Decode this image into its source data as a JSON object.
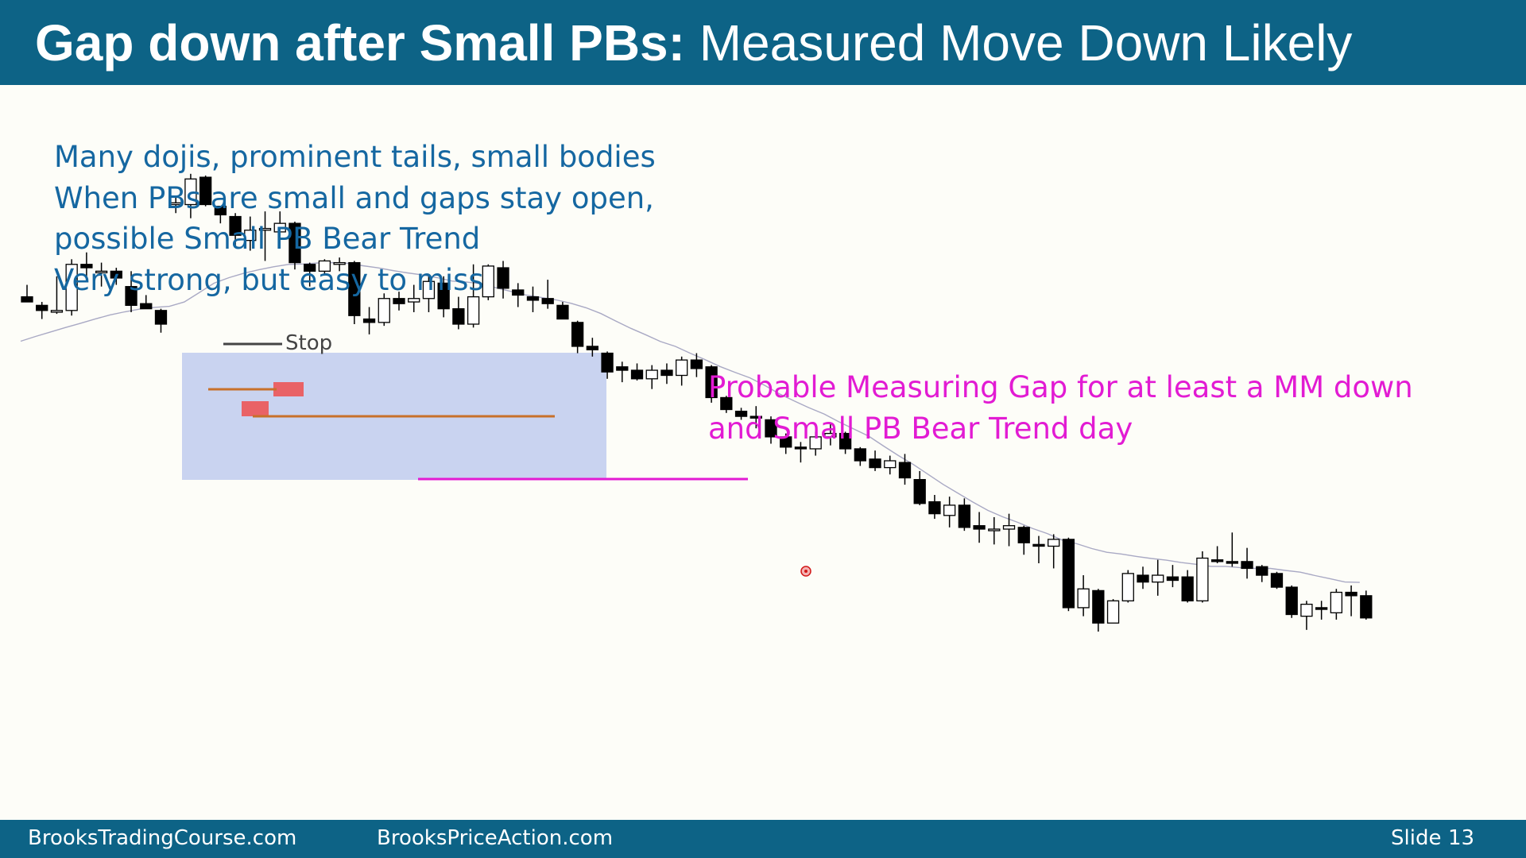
{
  "slide": {
    "title_bold": "Gap down after Small PBs:",
    "title_rest": " Measured Move Down Likely",
    "notes": [
      "Many dojis, prominent tails, small bodies",
      "When PBs are small and gaps stay open,",
      "possible Small PB Bear Trend",
      "Very strong, but easy to miss"
    ],
    "annotation": [
      "Probable Measuring Gap for at least a MM down",
      "and Small PB Bear Trend day"
    ],
    "stop_label": "Stop",
    "footer": {
      "left": "BrooksTradingCourse.com",
      "middle": "BrooksPriceAction.com",
      "slide_label": "Slide",
      "slide_number": "13"
    }
  },
  "colors": {
    "header_bg": "#0d6386",
    "notes_text": "#1567a1",
    "annotation_text": "#e21bd3",
    "highlight_box": "#c9d3f0",
    "bear_bar": "#000000",
    "bull_bar": "#ffffff",
    "moving_average": "#a9a9c4",
    "range_line": "#c8702a",
    "gap_line": "#e21bd3",
    "stop_box": "#ee4d4d"
  },
  "chart_data": {
    "type": "candlestick",
    "ylim": [
      0,
      100
    ],
    "bars": [
      {
        "o": 48.0,
        "h": 51.5,
        "l": 46.5,
        "c": 46.5
      },
      {
        "o": 45.5,
        "h": 46.5,
        "l": 41.5,
        "c": 44.0
      },
      {
        "o": 43.5,
        "h": 54.0,
        "l": 43.0,
        "c": 44.0
      },
      {
        "o": 44.0,
        "h": 59.0,
        "l": 42.5,
        "c": 57.5
      },
      {
        "o": 57.5,
        "h": 61.0,
        "l": 54.0,
        "c": 56.5
      },
      {
        "o": 55.5,
        "h": 58.0,
        "l": 51.0,
        "c": 55.5
      },
      {
        "o": 55.5,
        "h": 56.5,
        "l": 51.5,
        "c": 53.5
      },
      {
        "o": 51.0,
        "h": 55.5,
        "l": 43.5,
        "c": 45.5
      },
      {
        "o": 46.0,
        "h": 48.5,
        "l": 44.5,
        "c": 44.5
      },
      {
        "o": 44.0,
        "h": 44.5,
        "l": 37.5,
        "c": 40.0
      },
      {
        "o": 75.0,
        "h": 77.5,
        "l": 72.5,
        "c": 75.5
      },
      {
        "o": 75.0,
        "h": 84.0,
        "l": 71.0,
        "c": 82.5
      },
      {
        "o": 83.0,
        "h": 83.5,
        "l": 74.5,
        "c": 75.0
      },
      {
        "o": 74.5,
        "h": 74.5,
        "l": 69.5,
        "c": 72.0
      },
      {
        "o": 71.5,
        "h": 72.5,
        "l": 62.5,
        "c": 66.0
      },
      {
        "o": 64.5,
        "h": 71.5,
        "l": 61.5,
        "c": 67.5
      },
      {
        "o": 67.5,
        "h": 73.0,
        "l": 58.5,
        "c": 68.0
      },
      {
        "o": 67.0,
        "h": 73.0,
        "l": 64.5,
        "c": 69.5
      },
      {
        "o": 69.5,
        "h": 70.0,
        "l": 56.0,
        "c": 58.0
      },
      {
        "o": 57.5,
        "h": 58.0,
        "l": 51.0,
        "c": 55.5
      },
      {
        "o": 55.5,
        "h": 59.0,
        "l": 54.5,
        "c": 58.5
      },
      {
        "o": 57.5,
        "h": 59.5,
        "l": 55.5,
        "c": 58.0
      },
      {
        "o": 58.0,
        "h": 58.5,
        "l": 40.0,
        "c": 42.5
      },
      {
        "o": 41.5,
        "h": 45.0,
        "l": 37.0,
        "c": 40.5
      },
      {
        "o": 40.5,
        "h": 49.0,
        "l": 39.5,
        "c": 47.5
      },
      {
        "o": 47.5,
        "h": 49.5,
        "l": 44.0,
        "c": 46.0
      },
      {
        "o": 46.5,
        "h": 51.5,
        "l": 43.5,
        "c": 47.5
      },
      {
        "o": 47.5,
        "h": 54.0,
        "l": 43.5,
        "c": 52.5
      },
      {
        "o": 52.0,
        "h": 54.0,
        "l": 42.0,
        "c": 44.5
      },
      {
        "o": 44.5,
        "h": 48.0,
        "l": 38.5,
        "c": 40.0
      },
      {
        "o": 40.0,
        "h": 57.5,
        "l": 39.0,
        "c": 48.0
      },
      {
        "o": 48.0,
        "h": 57.5,
        "l": 47.0,
        "c": 57.0
      },
      {
        "o": 56.5,
        "h": 58.5,
        "l": 47.5,
        "c": 50.5
      },
      {
        "o": 50.0,
        "h": 52.0,
        "l": 45.0,
        "c": 48.5
      },
      {
        "o": 48.0,
        "h": 51.0,
        "l": 43.5,
        "c": 47.0
      },
      {
        "o": 47.5,
        "h": 53.0,
        "l": 44.5,
        "c": 46.0
      },
      {
        "o": 45.5,
        "h": 46.5,
        "l": 41.5,
        "c": 41.5
      },
      {
        "o": 40.5,
        "h": 41.0,
        "l": 31.5,
        "c": 33.5
      },
      {
        "o": 33.5,
        "h": 36.0,
        "l": 30.5,
        "c": 32.5
      },
      {
        "o": 31.5,
        "h": 32.0,
        "l": 24.0,
        "c": 26.0
      },
      {
        "o": 27.5,
        "h": 29.0,
        "l": 23.0,
        "c": 26.5
      },
      {
        "o": 26.5,
        "h": 28.5,
        "l": 23.5,
        "c": 24.0
      },
      {
        "o": 24.0,
        "h": 28.0,
        "l": 21.0,
        "c": 26.5
      },
      {
        "o": 26.5,
        "h": 28.5,
        "l": 22.5,
        "c": 25.0
      },
      {
        "o": 25.0,
        "h": 30.5,
        "l": 22.0,
        "c": 29.5
      },
      {
        "o": 29.5,
        "h": 31.5,
        "l": 24.5,
        "c": 27.0
      },
      {
        "o": 27.5,
        "h": 28.0,
        "l": 17.0,
        "c": 18.5
      },
      {
        "o": 18.5,
        "h": 19.0,
        "l": 14.0,
        "c": 15.0
      },
      {
        "o": 14.5,
        "h": 15.5,
        "l": 12.0,
        "c": 13.0
      },
      {
        "o": 13.0,
        "h": 16.0,
        "l": 9.5,
        "c": 12.5
      },
      {
        "o": 12.0,
        "h": 13.0,
        "l": 5.0,
        "c": 7.0
      },
      {
        "o": 7.0,
        "h": 8.0,
        "l": 2.0,
        "c": 4.0
      },
      {
        "o": 4.0,
        "h": 5.5,
        "l": -0.5,
        "c": 3.5
      },
      {
        "o": 3.5,
        "h": 8.5,
        "l": 1.5,
        "c": 7.0
      },
      {
        "o": 7.0,
        "h": 11.0,
        "l": 4.5,
        "c": 8.0
      },
      {
        "o": 8.0,
        "h": 8.5,
        "l": 2.0,
        "c": 3.5
      },
      {
        "o": 3.5,
        "h": 4.0,
        "l": -1.5,
        "c": 0.0
      },
      {
        "o": 0.5,
        "h": 3.0,
        "l": -3.0,
        "c": -2.0
      },
      {
        "o": -2.0,
        "h": 1.5,
        "l": -4.0,
        "c": 0.0
      },
      {
        "o": -0.5,
        "h": 2.0,
        "l": -7.0,
        "c": -5.0
      },
      {
        "o": -5.5,
        "h": -3.0,
        "l": -13.0,
        "c": -12.5
      },
      {
        "o": -12.0,
        "h": -10.0,
        "l": -17.0,
        "c": -15.5
      },
      {
        "o": -16.0,
        "h": -10.5,
        "l": -19.5,
        "c": -13.0
      },
      {
        "o": -13.0,
        "h": -11.0,
        "l": -20.5,
        "c": -19.5
      },
      {
        "o": -19.0,
        "h": -15.0,
        "l": -24.0,
        "c": -20.0
      },
      {
        "o": -20.0,
        "h": -16.5,
        "l": -24.5,
        "c": -20.0
      },
      {
        "o": -20.0,
        "h": -15.5,
        "l": -25.0,
        "c": -19.0
      },
      {
        "o": -19.5,
        "h": -19.0,
        "l": -27.5,
        "c": -24.0
      },
      {
        "o": -24.5,
        "h": -22.0,
        "l": -30.0,
        "c": -25.0
      },
      {
        "o": -25.0,
        "h": -21.5,
        "l": -31.5,
        "c": -23.0
      },
      {
        "o": -23.0,
        "h": -22.5,
        "l": -44.0,
        "c": -43.0
      },
      {
        "o": -43.0,
        "h": -33.5,
        "l": -45.5,
        "c": -37.5
      },
      {
        "o": -38.0,
        "h": -37.5,
        "l": -50.0,
        "c": -47.5
      },
      {
        "o": -47.5,
        "h": -40.5,
        "l": -47.5,
        "c": -41.0
      },
      {
        "o": -41.0,
        "h": -32.0,
        "l": -41.5,
        "c": -33.0
      },
      {
        "o": -33.5,
        "h": -31.0,
        "l": -37.5,
        "c": -35.5
      },
      {
        "o": -35.5,
        "h": -29.0,
        "l": -39.5,
        "c": -33.5
      },
      {
        "o": -34.0,
        "h": -30.5,
        "l": -37.0,
        "c": -35.0
      },
      {
        "o": -34.0,
        "h": -32.0,
        "l": -41.5,
        "c": -41.0
      },
      {
        "o": -41.0,
        "h": -26.5,
        "l": -41.5,
        "c": -28.5
      },
      {
        "o": -29.0,
        "h": -25.0,
        "l": -30.0,
        "c": -29.5
      },
      {
        "o": -29.5,
        "h": -21.0,
        "l": -31.0,
        "c": -30.0
      },
      {
        "o": -29.5,
        "h": -25.5,
        "l": -34.5,
        "c": -31.5
      },
      {
        "o": -31.0,
        "h": -30.5,
        "l": -35.5,
        "c": -33.5
      },
      {
        "o": -33.0,
        "h": -32.5,
        "l": -37.5,
        "c": -37.0
      },
      {
        "o": -37.0,
        "h": -36.5,
        "l": -46.0,
        "c": -45.0
      },
      {
        "o": -45.5,
        "h": -41.0,
        "l": -49.5,
        "c": -42.0
      },
      {
        "o": -43.0,
        "h": -41.0,
        "l": -46.5,
        "c": -43.5
      },
      {
        "o": -44.5,
        "h": -37.5,
        "l": -46.5,
        "c": -38.5
      },
      {
        "o": -38.5,
        "h": -36.5,
        "l": -45.5,
        "c": -39.5
      },
      {
        "o": -39.5,
        "h": -38.0,
        "l": -46.5,
        "c": -46.0
      }
    ],
    "moving_average": [
      35.0,
      36.4,
      37.7,
      39.0,
      40.2,
      41.5,
      42.7,
      43.6,
      44.4,
      44.9,
      45.2,
      46.5,
      49.2,
      52.0,
      53.6,
      54.9,
      55.9,
      56.8,
      57.5,
      57.6,
      57.9,
      58.0,
      57.8,
      57.1,
      56.5,
      55.7,
      55.0,
      54.4,
      53.6,
      52.6,
      52.3,
      51.8,
      50.6,
      49.5,
      48.5,
      47.8,
      47.1,
      46.1,
      44.8,
      43.1,
      40.9,
      38.8,
      36.9,
      34.9,
      33.5,
      31.5,
      29.6,
      27.6,
      25.9,
      24.3,
      22.1,
      19.6,
      17.5,
      15.5,
      13.7,
      11.4,
      9.3,
      7.2,
      4.3,
      1.5,
      -1.1,
      -4.0,
      -6.9,
      -9.5,
      -12.1,
      -14.5,
      -16.4,
      -18.0,
      -19.8,
      -21.3,
      -23.2,
      -24.3,
      -25.7,
      -26.8,
      -27.3,
      -28.0,
      -28.6,
      -29.1,
      -29.8,
      -30.3,
      -30.9,
      -30.9,
      -31.3,
      -31.5,
      -31.5,
      -32.1,
      -32.6,
      -33.6,
      -34.5,
      -35.5,
      -35.6
    ]
  }
}
